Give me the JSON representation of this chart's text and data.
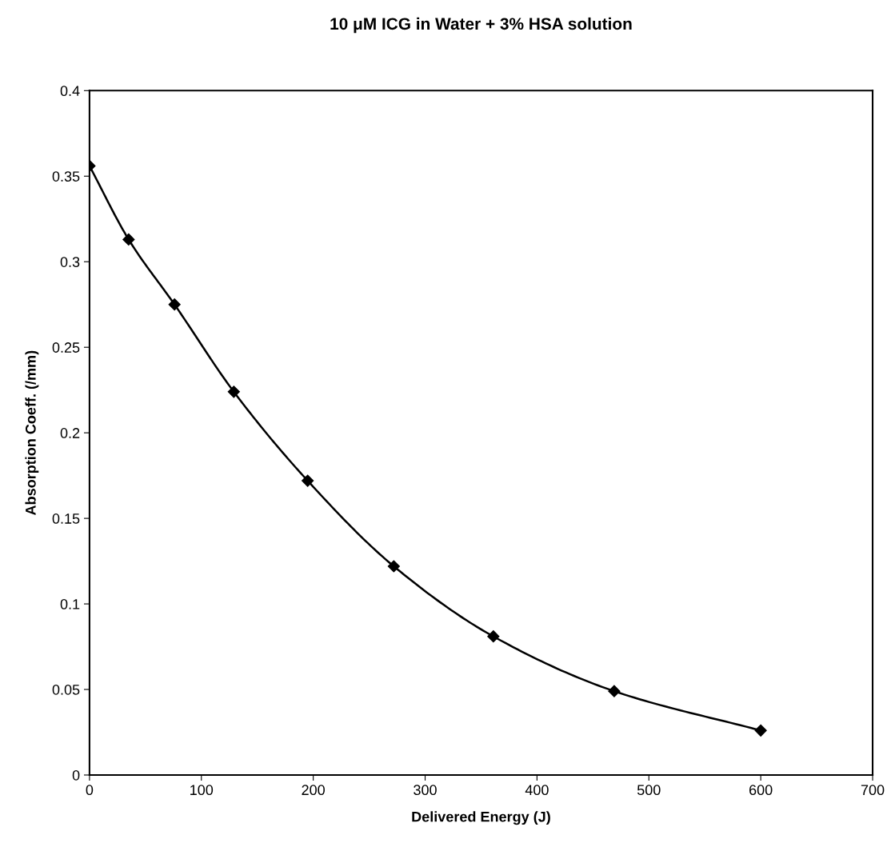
{
  "chart_data": {
    "type": "line",
    "title": "10 μM ICG in Water + 3% HSA solution",
    "xlabel": "Delivered Energy (J)",
    "ylabel": "Absorption Coeff. (/mm)",
    "x": [
      0,
      35,
      76,
      129,
      195,
      272,
      361,
      469,
      600
    ],
    "series": [
      {
        "color": "#000000",
        "values": [
          0.356,
          0.313,
          0.275,
          0.224,
          0.172,
          0.122,
          0.081,
          0.049,
          0.026
        ]
      }
    ],
    "xlim": [
      0,
      700
    ],
    "xticks": [
      0,
      100,
      200,
      300,
      400,
      500,
      600,
      700
    ],
    "ylim": [
      0,
      0.4
    ],
    "yticks": [
      0,
      0.05,
      0.1,
      0.15,
      0.2,
      0.25,
      0.3,
      0.35,
      0.4
    ],
    "grid": false,
    "legend": false,
    "marker": "diamond",
    "line_style": "solid"
  }
}
